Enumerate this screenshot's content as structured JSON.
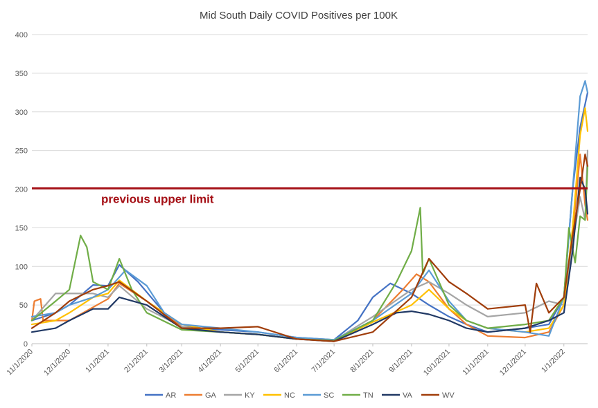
{
  "chart_data": {
    "type": "line",
    "title": "Mid South Daily COVID Positives per 100K",
    "xlabel": "",
    "ylabel": "",
    "ylim": [
      0,
      400
    ],
    "yticks": [
      0,
      50,
      100,
      150,
      200,
      250,
      300,
      350,
      400
    ],
    "x_tick_labels": [
      "11/1/2020",
      "12/1/2020",
      "1/1/2021",
      "2/1/2021",
      "3/1/2021",
      "4/1/2021",
      "5/1/2021",
      "6/1/2021",
      "7/1/2021",
      "8/1/2021",
      "9/1/2021",
      "10/1/2021",
      "11/1/2021",
      "12/1/2021",
      "1/1/2022"
    ],
    "x_tick_dates": [
      "2020-11-01",
      "2020-12-01",
      "2021-01-01",
      "2021-02-01",
      "2021-03-01",
      "2021-04-01",
      "2021-05-01",
      "2021-06-01",
      "2021-07-01",
      "2021-08-01",
      "2021-09-01",
      "2021-10-01",
      "2021-11-01",
      "2021-12-01",
      "2022-01-01"
    ],
    "x_range": [
      "2020-11-01",
      "2022-01-20"
    ],
    "grid": true,
    "legend_position": "bottom",
    "reference_line": {
      "value": 201,
      "label": "previous upper limit",
      "color": "#a50f15"
    },
    "series": [
      {
        "name": "AR",
        "color": "#4472c4",
        "x": [
          "2020-11-01",
          "2020-11-20",
          "2020-12-01",
          "2020-12-20",
          "2021-01-01",
          "2021-01-10",
          "2021-01-25",
          "2021-02-15",
          "2021-03-01",
          "2021-04-01",
          "2021-05-01",
          "2021-06-01",
          "2021-07-01",
          "2021-07-20",
          "2021-08-01",
          "2021-08-15",
          "2021-09-01",
          "2021-09-15",
          "2021-10-01",
          "2021-10-15",
          "2021-11-01",
          "2021-12-01",
          "2021-12-20",
          "2022-01-01",
          "2022-01-08",
          "2022-01-14",
          "2022-01-18",
          "2022-01-20"
        ],
        "values": [
          30,
          40,
          50,
          76,
          75,
          102,
          80,
          40,
          22,
          18,
          15,
          8,
          5,
          30,
          60,
          78,
          65,
          50,
          35,
          25,
          15,
          20,
          25,
          60,
          200,
          280,
          310,
          325
        ]
      },
      {
        "name": "GA",
        "color": "#ed7d31",
        "x": [
          "2020-11-01",
          "2020-11-03",
          "2020-11-08",
          "2020-11-10",
          "2020-12-01",
          "2021-01-01",
          "2021-01-10",
          "2021-02-01",
          "2021-03-01",
          "2021-04-01",
          "2021-05-01",
          "2021-06-01",
          "2021-07-01",
          "2021-08-01",
          "2021-08-25",
          "2021-09-05",
          "2021-09-15",
          "2021-10-01",
          "2021-10-15",
          "2021-11-01",
          "2021-12-01",
          "2021-12-20",
          "2022-01-01",
          "2022-01-08",
          "2022-01-14",
          "2022-01-18",
          "2022-01-20"
        ],
        "values": [
          30,
          55,
          58,
          30,
          30,
          58,
          78,
          55,
          22,
          15,
          12,
          6,
          4,
          30,
          70,
          90,
          80,
          45,
          25,
          10,
          8,
          15,
          50,
          140,
          245,
          180,
          160
        ]
      },
      {
        "name": "KY",
        "color": "#a5a5a5",
        "x": [
          "2020-11-01",
          "2020-11-20",
          "2020-12-01",
          "2020-12-20",
          "2021-01-01",
          "2021-01-10",
          "2021-02-01",
          "2021-03-01",
          "2021-04-01",
          "2021-05-01",
          "2021-06-01",
          "2021-07-01",
          "2021-08-01",
          "2021-09-01",
          "2021-09-15",
          "2021-10-01",
          "2021-10-15",
          "2021-11-01",
          "2021-12-01",
          "2021-12-20",
          "2022-01-01",
          "2022-01-08",
          "2022-01-14",
          "2022-01-18",
          "2022-01-20"
        ],
        "values": [
          30,
          65,
          65,
          65,
          60,
          75,
          45,
          22,
          15,
          12,
          6,
          4,
          35,
          70,
          80,
          65,
          50,
          35,
          40,
          55,
          50,
          130,
          190,
          160,
          250
        ]
      },
      {
        "name": "NC",
        "color": "#ffc000",
        "x": [
          "2020-11-01",
          "2020-11-20",
          "2020-12-01",
          "2020-12-20",
          "2021-01-01",
          "2021-01-10",
          "2021-02-01",
          "2021-03-01",
          "2021-04-01",
          "2021-05-01",
          "2021-06-01",
          "2021-07-01",
          "2021-08-01",
          "2021-09-01",
          "2021-09-15",
          "2021-10-01",
          "2021-10-15",
          "2021-11-01",
          "2021-12-01",
          "2021-12-20",
          "2022-01-01",
          "2022-01-08",
          "2022-01-14",
          "2022-01-18",
          "2022-01-20"
        ],
        "values": [
          25,
          30,
          40,
          60,
          65,
          82,
          55,
          25,
          15,
          12,
          6,
          4,
          28,
          50,
          70,
          45,
          30,
          20,
          15,
          20,
          50,
          150,
          270,
          305,
          275
        ]
      },
      {
        "name": "SC",
        "color": "#5b9bd5",
        "x": [
          "2020-11-01",
          "2020-11-20",
          "2020-12-01",
          "2020-12-20",
          "2021-01-01",
          "2021-01-15",
          "2021-02-01",
          "2021-02-15",
          "2021-03-01",
          "2021-04-01",
          "2021-05-01",
          "2021-06-01",
          "2021-07-01",
          "2021-08-01",
          "2021-09-01",
          "2021-09-15",
          "2021-10-01",
          "2021-10-15",
          "2021-11-01",
          "2021-12-01",
          "2021-12-20",
          "2022-01-01",
          "2022-01-08",
          "2022-01-14",
          "2022-01-18",
          "2022-01-20"
        ],
        "values": [
          35,
          40,
          50,
          60,
          70,
          95,
          75,
          40,
          25,
          20,
          15,
          8,
          5,
          30,
          65,
          95,
          55,
          30,
          20,
          15,
          10,
          60,
          200,
          320,
          340,
          325
        ]
      },
      {
        "name": "TN",
        "color": "#70ad47",
        "x": [
          "2020-11-01",
          "2020-11-20",
          "2020-12-01",
          "2020-12-10",
          "2020-12-15",
          "2020-12-20",
          "2021-01-01",
          "2021-01-10",
          "2021-01-20",
          "2021-02-01",
          "2021-03-01",
          "2021-04-01",
          "2021-05-01",
          "2021-06-01",
          "2021-07-01",
          "2021-08-01",
          "2021-08-20",
          "2021-09-01",
          "2021-09-08",
          "2021-09-10",
          "2021-09-15",
          "2021-10-01",
          "2021-10-15",
          "2021-11-01",
          "2021-12-01",
          "2021-12-20",
          "2022-01-01",
          "2022-01-05",
          "2022-01-10",
          "2022-01-14",
          "2022-01-18",
          "2022-01-20"
        ],
        "values": [
          30,
          55,
          70,
          140,
          125,
          80,
          70,
          110,
          70,
          40,
          18,
          15,
          12,
          6,
          4,
          30,
          80,
          120,
          176,
          90,
          110,
          50,
          30,
          20,
          25,
          30,
          60,
          150,
          105,
          165,
          160,
          230
        ]
      },
      {
        "name": "VA",
        "color": "#203864",
        "x": [
          "2020-11-01",
          "2020-11-20",
          "2020-12-01",
          "2020-12-20",
          "2021-01-01",
          "2021-01-10",
          "2021-02-01",
          "2021-03-01",
          "2021-04-01",
          "2021-05-01",
          "2021-06-01",
          "2021-07-01",
          "2021-08-01",
          "2021-08-20",
          "2021-09-01",
          "2021-09-15",
          "2021-10-01",
          "2021-10-15",
          "2021-11-01",
          "2021-12-01",
          "2021-12-20",
          "2022-01-01",
          "2022-01-08",
          "2022-01-14",
          "2022-01-18",
          "2022-01-20"
        ],
        "values": [
          15,
          20,
          30,
          45,
          45,
          60,
          50,
          20,
          15,
          12,
          6,
          3,
          25,
          40,
          42,
          38,
          30,
          20,
          15,
          20,
          30,
          40,
          120,
          215,
          200,
          168
        ]
      },
      {
        "name": "WV",
        "color": "#a03d0a",
        "x": [
          "2020-11-01",
          "2020-11-20",
          "2020-12-01",
          "2020-12-20",
          "2021-01-01",
          "2021-01-10",
          "2021-02-01",
          "2021-03-01",
          "2021-04-01",
          "2021-05-01",
          "2021-06-01",
          "2021-07-01",
          "2021-08-01",
          "2021-09-01",
          "2021-09-15",
          "2021-10-01",
          "2021-10-15",
          "2021-11-01",
          "2021-12-01",
          "2021-12-05",
          "2021-12-10",
          "2021-12-20",
          "2022-01-01",
          "2022-01-08",
          "2022-01-14",
          "2022-01-18",
          "2022-01-20"
        ],
        "values": [
          20,
          40,
          55,
          70,
          75,
          80,
          55,
          20,
          20,
          22,
          6,
          3,
          15,
          60,
          110,
          80,
          65,
          45,
          50,
          15,
          78,
          40,
          60,
          140,
          200,
          245,
          230
        ]
      }
    ]
  }
}
